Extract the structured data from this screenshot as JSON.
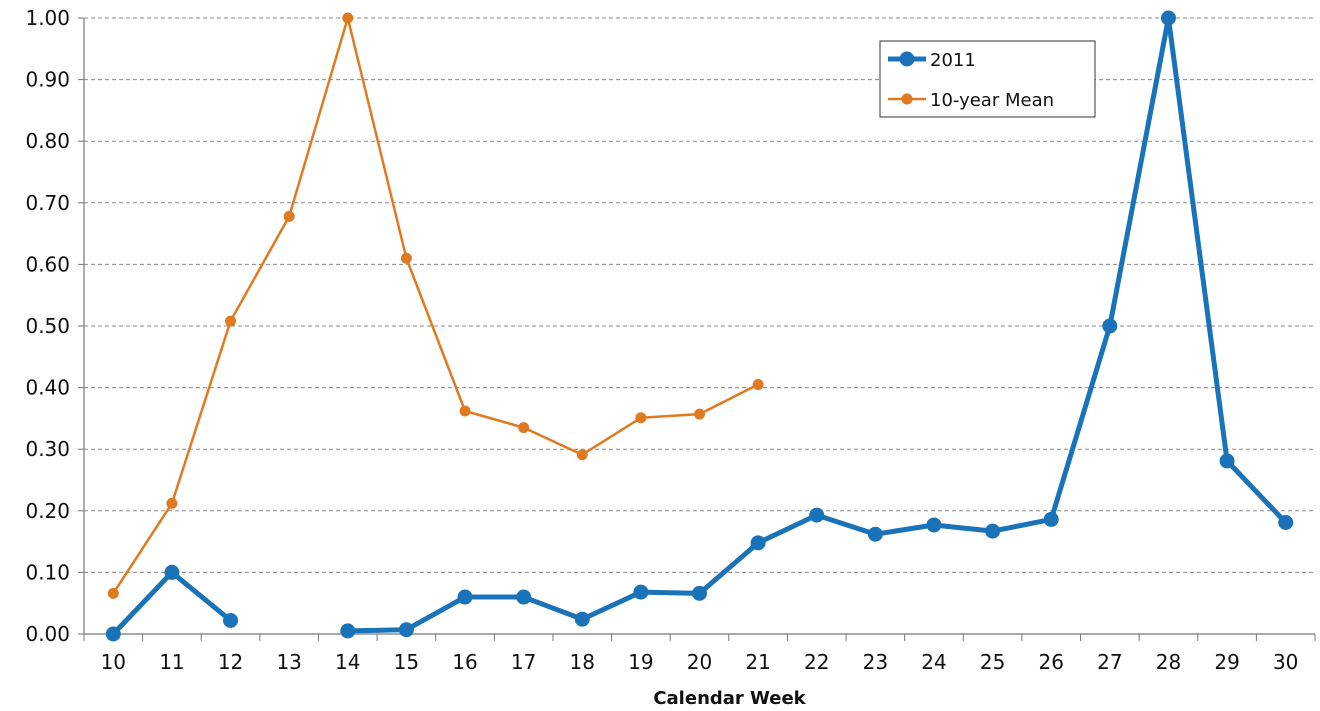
{
  "chart_data": {
    "type": "line",
    "title": "",
    "xlabel": "Calendar Week",
    "ylabel": "",
    "x": [
      10,
      11,
      12,
      13,
      14,
      15,
      16,
      17,
      18,
      19,
      20,
      21,
      22,
      23,
      24,
      25,
      26,
      27,
      28,
      29,
      30
    ],
    "x_tick_labels": [
      "10",
      "11",
      "12",
      "13",
      "14",
      "15",
      "16",
      "17",
      "18",
      "19",
      "20",
      "21",
      "22",
      "23",
      "24",
      "25",
      "26",
      "27",
      "28",
      "29",
      "30"
    ],
    "ylim": [
      0,
      1
    ],
    "y_ticks": [
      0,
      0.1,
      0.2,
      0.3,
      0.4,
      0.5,
      0.6,
      0.7,
      0.8,
      0.9,
      1.0
    ],
    "y_tick_labels": [
      "0.00",
      "0.10",
      "0.20",
      "0.30",
      "0.40",
      "0.50",
      "0.60",
      "0.70",
      "0.80",
      "0.90",
      "1.00"
    ],
    "grid": "horizontal dashed",
    "legend_position": "top-right",
    "series": [
      {
        "name": "2011",
        "color": "#1a73b8",
        "values": [
          0.0,
          0.1,
          0.022,
          null,
          0.005,
          0.007,
          0.06,
          0.06,
          0.024,
          0.068,
          0.066,
          0.148,
          0.193,
          0.162,
          0.177,
          0.167,
          0.186,
          0.5,
          1.0,
          0.281,
          0.181
        ]
      },
      {
        "name": "10-year Mean",
        "color": "#e07a20",
        "values": [
          0.066,
          0.212,
          0.508,
          0.678,
          1.0,
          0.61,
          0.362,
          0.335,
          0.291,
          0.351,
          0.357,
          0.405,
          null,
          null,
          null,
          null,
          null,
          null,
          null,
          null,
          null
        ]
      }
    ]
  }
}
